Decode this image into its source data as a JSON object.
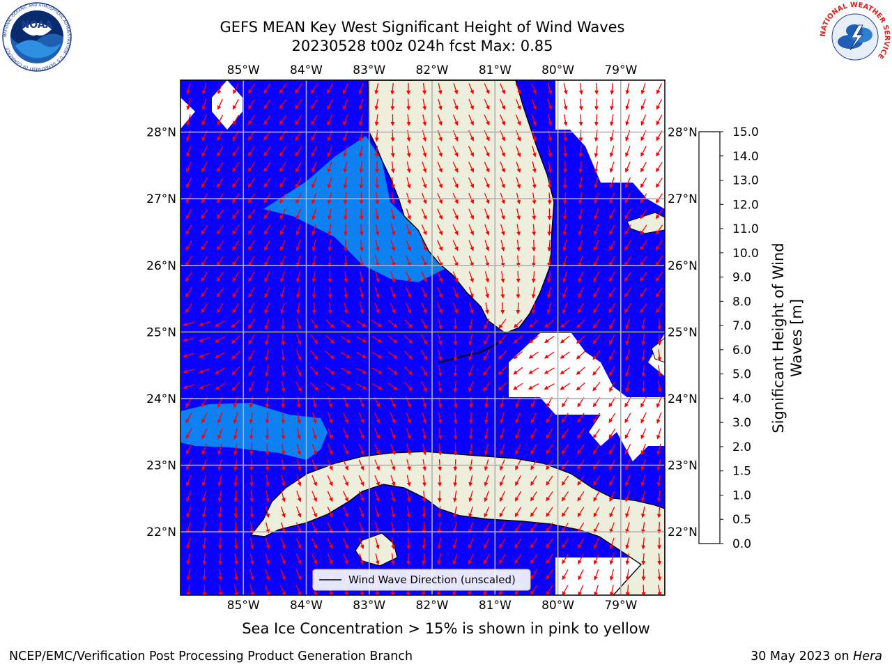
{
  "title": {
    "line1": "GEFS MEAN Key West Significant Height of Wind Waves",
    "line2": "20230528 t00z 024h fcst   Max: 0.85"
  },
  "logos": {
    "noaa": {
      "text": "NOAA",
      "ring_text": "NATIONAL OCEANIC AND ATMOSPHERIC ADMINISTRATION · U.S. DEPARTMENT OF COMMERCE"
    },
    "nws": {
      "ring_text": "NATIONAL WEATHER SERVICE"
    }
  },
  "map": {
    "lon_ticks": [
      "85°W",
      "84°W",
      "83°W",
      "82°W",
      "81°W",
      "80°W",
      "79°W"
    ],
    "lat_ticks": [
      "28°N",
      "27°N",
      "26°N",
      "25°N",
      "24°N",
      "23°N",
      "22°N"
    ],
    "lon_values": [
      -85,
      -84,
      -83,
      -82,
      -81,
      -80,
      -79
    ],
    "lat_values": [
      28,
      27,
      26,
      25,
      24,
      23,
      22
    ],
    "lon_range": [
      -86,
      -78.3
    ],
    "lat_range": [
      21.05,
      28.78
    ],
    "legend_label": "Wind Wave Direction (unscaled)",
    "colors": {
      "ocean_low": "#0a00ff",
      "ocean_mid": "#0d80f2",
      "land": "#eeeedd",
      "arrow": "#ff0000",
      "grid": "#b0b0b0"
    }
  },
  "colorbar": {
    "label_line1": "Significant Height of Wind",
    "label_line2": "Waves [m]",
    "ticks": [
      "0.0",
      "0.5",
      "1.0",
      "1.5",
      "2.0",
      "3.0",
      "4.0",
      "5.0",
      "6.0",
      "7.0",
      "8.0",
      "9.0",
      "10.0",
      "11.0",
      "12.0",
      "13.0",
      "14.0",
      "15.0"
    ],
    "colors": [
      "#0000ff",
      "#0a79f2",
      "#00d9ff",
      "#33f2ff",
      "#73ffff",
      "#a6ffff",
      "#4dff73",
      "#00e600",
      "#00c800",
      "#66e600",
      "#b3e600",
      "#d9f200",
      "#ffff00",
      "#ffcc00",
      "#ff9900",
      "#ff6600",
      "#ff3300"
    ]
  },
  "footer": {
    "note": "Sea Ice Concentration > 15% is shown in pink to yellow",
    "left": "NCEP/EMC/Verification Post Processing Product Generation Branch",
    "date": "30 May 2023 on ",
    "host": "Hera"
  }
}
